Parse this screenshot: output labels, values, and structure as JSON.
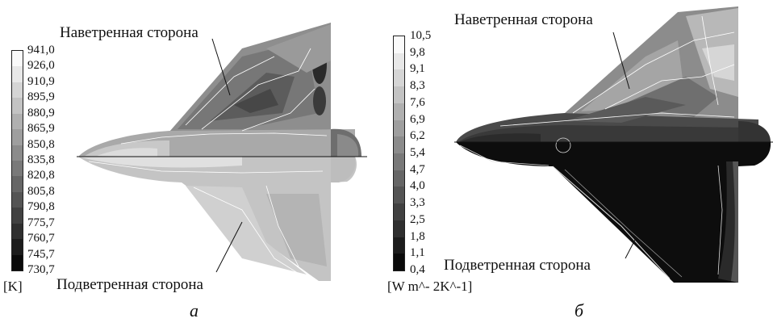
{
  "panels": [
    {
      "id": "a",
      "letter": "а",
      "windward_label": "Наветренная сторона",
      "leeward_label": "Подветренная сторона",
      "unit": "[K]",
      "ticks": [
        "941,0",
        "926,0",
        "910,9",
        "895,9",
        "880,9",
        "865,9",
        "850,8",
        "835,8",
        "820,8",
        "805,8",
        "790,8",
        "775,7",
        "760,7",
        "745,7",
        "730,7"
      ]
    },
    {
      "id": "b",
      "letter": "б",
      "windward_label": "Наветренная сторона",
      "leeward_label": "Подветренная сторона",
      "unit": "[W m^- 2K^-1]",
      "ticks": [
        "10,5",
        "9,8",
        "9,1",
        "8,3",
        "7,6",
        "6,9",
        "6,2",
        "5,4",
        "4,7",
        "4,0",
        "3,3",
        "2,5",
        "1,8",
        "1,1",
        "0,4"
      ]
    }
  ]
}
